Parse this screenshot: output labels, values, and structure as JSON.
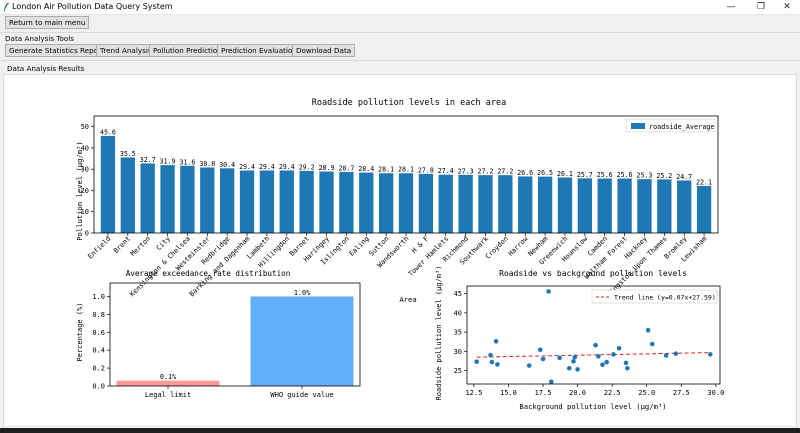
{
  "window": {
    "title": "London Air Pollution Data Query System",
    "controls": [
      "—",
      "❐",
      "✕"
    ]
  },
  "nav": {
    "return_label": "Return to main menu"
  },
  "tools": {
    "section_label": "Data Analysis Tools",
    "buttons": [
      "Generate Statistics Report",
      "Trend Analysis",
      "Pollution Prediction",
      "Prediction Evaluation",
      "Download Data"
    ]
  },
  "results": {
    "section_label": "Data Analysis Results"
  },
  "colors": {
    "bar": "#1f77b4",
    "legal_bar": "#ff9896",
    "who_bar": "#63b0f8",
    "trend": "#d62728",
    "point": "#1f77b4"
  },
  "chart_data": [
    {
      "type": "bar",
      "title": "Roadside pollution levels in each area",
      "xlabel": "Area",
      "ylabel": "Pollution level (μg/m³)",
      "ylim": [
        0,
        55
      ],
      "yticks": [
        0,
        10,
        20,
        30,
        40,
        50
      ],
      "legend": "top-right",
      "series": [
        {
          "name": "roadside_Average",
          "values": [
            45.6,
            35.5,
            32.7,
            31.9,
            31.6,
            30.8,
            30.4,
            29.4,
            29.4,
            29.4,
            29.2,
            28.9,
            28.7,
            28.4,
            28.1,
            28.1,
            27.8,
            27.4,
            27.3,
            27.2,
            27.2,
            26.6,
            26.5,
            26.1,
            25.7,
            25.6,
            25.6,
            25.3,
            25.2,
            24.7,
            22.1
          ]
        }
      ],
      "categories": [
        "Enfield",
        "Brent",
        "Merton",
        "City",
        "Kensington & Chelsea",
        "Westminster",
        "Redbridge",
        "Barking and Dagenham",
        "Lambeth",
        "Hillingdon",
        "Barnet",
        "Haringey",
        "Islington",
        "Ealing",
        "Sutton",
        "Wandsworth",
        "H & F",
        "Tower Hamlets",
        "Richmond",
        "Southwark",
        "Croydon",
        "Harrow",
        "Newham",
        "Greenwich",
        "Hounslow",
        "Camden",
        "Waltham Forest",
        "Hackney",
        "Kingston Upon Thames",
        "Bromley",
        "Lewisham"
      ],
      "value_labels": [
        "45.6",
        "35.5",
        "32.7",
        "31.9",
        "31.6",
        "30.8",
        "30.4",
        "29.4",
        "29.4",
        "29.4",
        "29.2",
        "28.9",
        "28.7",
        "28.4",
        "28.1",
        "28.1",
        "27.8",
        "27.4",
        "27.3",
        "27.2",
        "27.2",
        "26.6",
        "26.5",
        "26.1",
        "25.7",
        "25.6",
        "25.6",
        "25.3",
        "25.2",
        "24.7",
        "22.1"
      ]
    },
    {
      "type": "bar",
      "title": "Average exceedance rate distribution",
      "xlabel": "",
      "ylabel": "Percentage (%)",
      "ylim": [
        0,
        1.15
      ],
      "yticks": [
        0.0,
        0.2,
        0.4,
        0.6,
        0.8,
        1.0
      ],
      "ytick_labels": [
        "0.0",
        "0.2",
        "0.4",
        "0.6",
        "0.8",
        "1.0"
      ],
      "categories": [
        "Legal limit",
        "WHO guide value"
      ],
      "values": [
        0.06,
        1.0
      ],
      "value_labels": [
        "0.1%",
        "1.0%"
      ]
    },
    {
      "type": "scatter",
      "title": "Roadside vs background pollution levels",
      "xlabel": "Background pollution level (μg/m³)",
      "ylabel": "Roadside pollution level (μg/m³)",
      "xlim": [
        12,
        30.3
      ],
      "ylim": [
        21.5,
        47
      ],
      "xticks": [
        12.5,
        15.0,
        17.5,
        20.0,
        22.5,
        25.0,
        27.5,
        30.0
      ],
      "xtick_labels": [
        "12.5",
        "15.0",
        "17.5",
        "20.0",
        "22.5",
        "25.0",
        "27.5",
        "30.0"
      ],
      "yticks": [
        25,
        30,
        35,
        40,
        45
      ],
      "legend": "top-right",
      "trend": {
        "label": "Trend line (y=0.07x+27.59)",
        "slope": 0.07,
        "intercept": 27.59
      },
      "points": [
        [
          12.7,
          27.3
        ],
        [
          13.7,
          29.0
        ],
        [
          13.8,
          27.2
        ],
        [
          14.1,
          32.6
        ],
        [
          14.2,
          26.6
        ],
        [
          16.5,
          26.3
        ],
        [
          17.3,
          30.4
        ],
        [
          17.5,
          28.0
        ],
        [
          17.9,
          45.6
        ],
        [
          18.1,
          22.1
        ],
        [
          18.7,
          28.3
        ],
        [
          19.4,
          25.6
        ],
        [
          19.7,
          27.4
        ],
        [
          19.8,
          28.5
        ],
        [
          20.0,
          25.3
        ],
        [
          21.3,
          31.6
        ],
        [
          21.5,
          28.7
        ],
        [
          21.8,
          26.5
        ],
        [
          22.1,
          27.2
        ],
        [
          22.6,
          29.2
        ],
        [
          23.0,
          30.8
        ],
        [
          23.5,
          27.0
        ],
        [
          23.6,
          25.6
        ],
        [
          25.1,
          35.5
        ],
        [
          25.4,
          31.9
        ],
        [
          26.4,
          28.9
        ],
        [
          27.1,
          29.4
        ],
        [
          29.6,
          29.2
        ]
      ]
    }
  ]
}
